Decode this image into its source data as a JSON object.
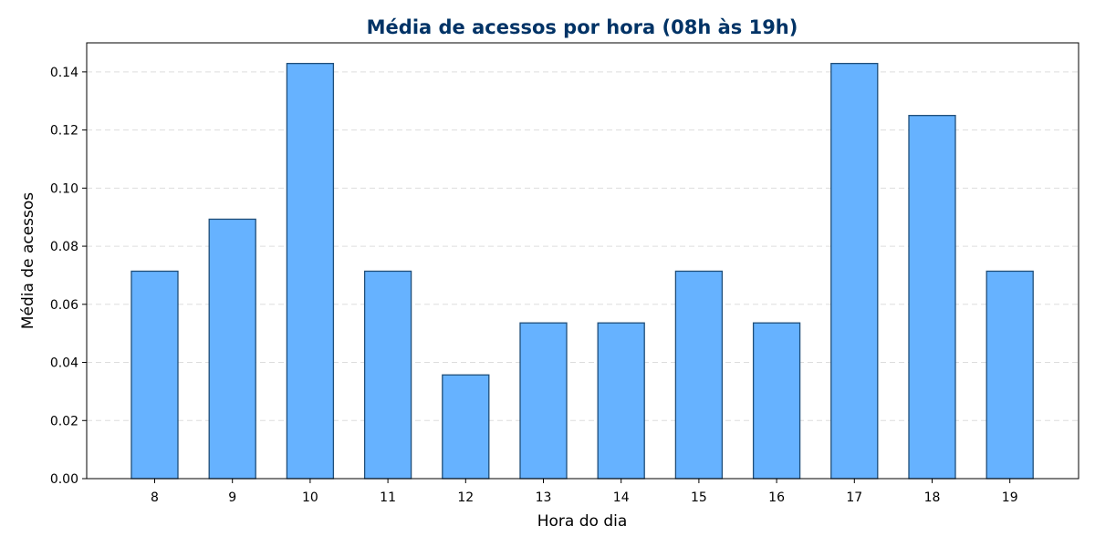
{
  "chart_data": {
    "type": "bar",
    "title": "Média de acessos por hora (08h às 19h)",
    "xlabel": "Hora do dia",
    "ylabel": "Média de acessos",
    "categories": [
      "8",
      "9",
      "10",
      "11",
      "12",
      "13",
      "14",
      "15",
      "16",
      "17",
      "18",
      "19"
    ],
    "values": [
      0.0714,
      0.0893,
      0.1429,
      0.0714,
      0.0357,
      0.0536,
      0.0536,
      0.0714,
      0.0536,
      0.1429,
      0.125,
      0.0714
    ],
    "ylim": [
      0,
      0.15
    ],
    "yticks": [
      0.0,
      0.02,
      0.04,
      0.06,
      0.08,
      0.1,
      0.12,
      0.14
    ],
    "ytick_labels": [
      "0.00",
      "0.02",
      "0.04",
      "0.06",
      "0.08",
      "0.10",
      "0.12",
      "0.14"
    ],
    "grid": "y-dashed",
    "colors": {
      "bar_fill": "#66b2ff",
      "bar_edge": "#1f4e79",
      "title": "#003366",
      "grid": "#dddddd"
    }
  }
}
